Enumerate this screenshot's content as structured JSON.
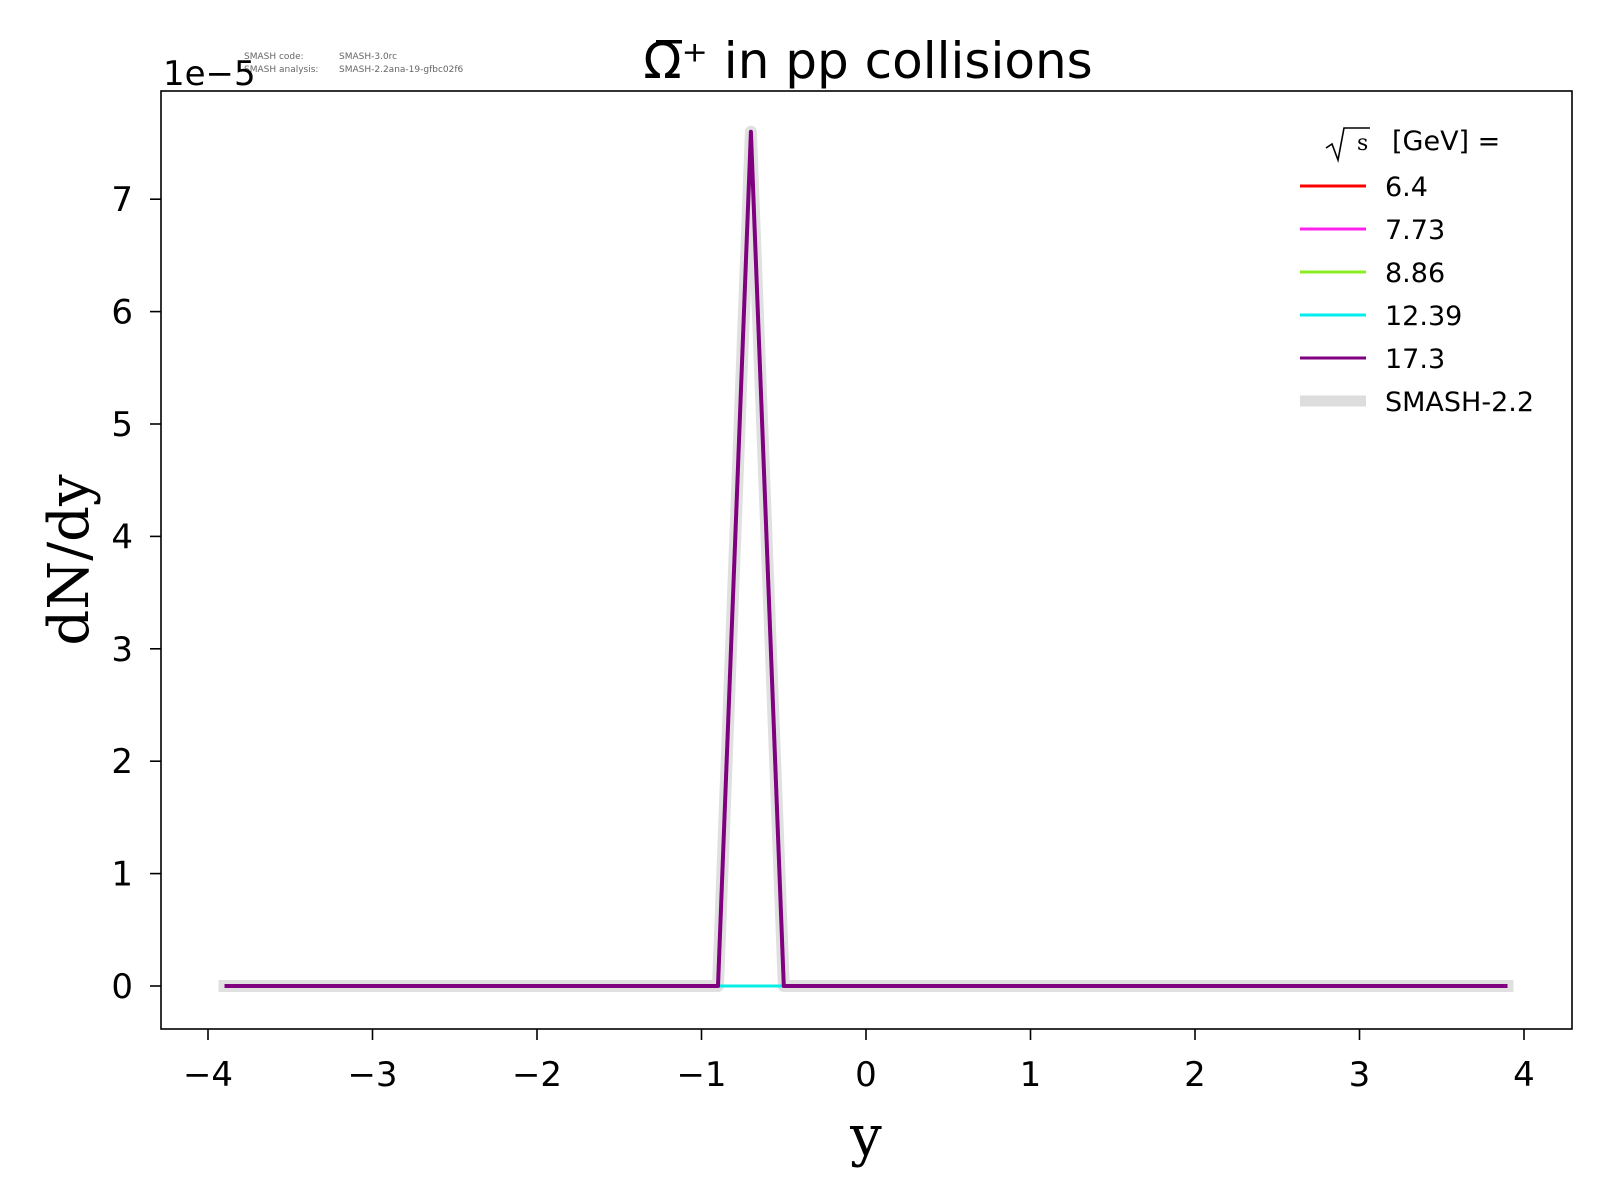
{
  "chart_data": {
    "type": "line",
    "title": "Ω̅⁺ in pp collisions",
    "xlabel": "y",
    "ylabel": "dN/dy",
    "y_offset_text": "1e−5",
    "y_scale_factor": 1e-05,
    "xlim": [
      -4.3,
      4.3
    ],
    "ylim": [
      -0.37,
      7.98
    ],
    "x_ticks": [
      -4,
      -3,
      -2,
      -1,
      0,
      1,
      2,
      3,
      4
    ],
    "x_tick_labels": [
      "−4",
      "−3",
      "−2",
      "−1",
      "0",
      "1",
      "2",
      "3",
      "4"
    ],
    "y_ticks": [
      0,
      1,
      2,
      3,
      4,
      5,
      6,
      7
    ],
    "y_tick_labels": [
      "0",
      "1",
      "2",
      "3",
      "4",
      "5",
      "6",
      "7"
    ],
    "grid": false,
    "legend_title": "[GeV] =",
    "legend_title_symbol": "√s",
    "legend_position": "top-right",
    "meta_lines": [
      {
        "label": "SMASH code:",
        "value": "SMASH-3.0rc"
      },
      {
        "label": "SMASH analysis:",
        "value": "SMASH-2.2ana-19-gfbc02f6"
      }
    ],
    "series": [
      {
        "name": "6.4",
        "color": "#ff0000",
        "x": [
          -3.9,
          -0.9,
          -0.5,
          3.9
        ],
        "y": [
          0,
          0,
          0,
          0
        ]
      },
      {
        "name": "7.73",
        "color": "#ff22ee",
        "x": [
          -3.9,
          -0.9,
          -0.5,
          3.9
        ],
        "y": [
          0,
          0,
          0,
          0
        ]
      },
      {
        "name": "8.86",
        "color": "#88ee22",
        "x": [
          -3.9,
          -0.9,
          -0.5,
          3.9
        ],
        "y": [
          0,
          0,
          0,
          0
        ]
      },
      {
        "name": "12.39",
        "color": "#00eeee",
        "x": [
          -3.9,
          -0.9,
          -0.5,
          3.9
        ],
        "y": [
          0,
          0,
          0,
          0
        ]
      },
      {
        "name": "17.3",
        "color": "#800080",
        "x": [
          -3.9,
          -0.9,
          -0.7,
          -0.5,
          3.9
        ],
        "y": [
          0,
          0,
          7.6,
          0,
          0
        ]
      }
    ],
    "reference": {
      "name": "SMASH-2.2",
      "color": "#dddddd",
      "x": [
        -3.9,
        -0.9,
        -0.7,
        -0.5,
        3.9
      ],
      "y": [
        0,
        0,
        7.6,
        0,
        0
      ]
    }
  }
}
